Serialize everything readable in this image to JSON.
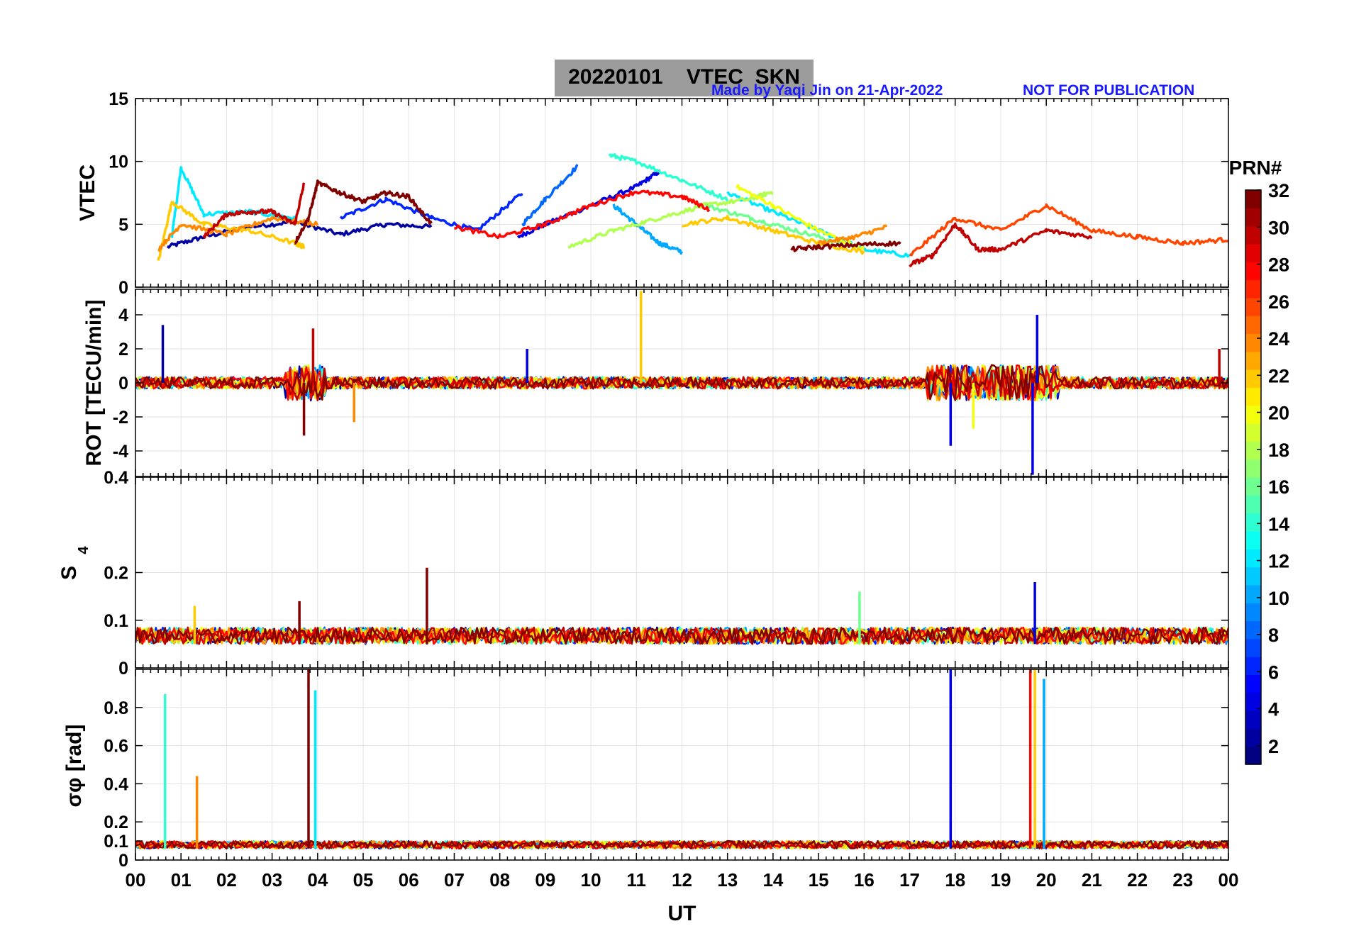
{
  "header": {
    "title": "20220101    VTEC  SKN",
    "credit": "Made by Yaqi Jin on 21-Apr-2022",
    "notice": "NOT FOR PUBLICATION"
  },
  "colors": {
    "title_box": "#9c9c9c",
    "credit_text": "#1a1aff",
    "colormap": "jet"
  },
  "chart_data": [
    {
      "type": "line",
      "panel": "vtec",
      "xlabel": "",
      "ylabel": "VTEC",
      "xlim": [
        0,
        24
      ],
      "ylim": [
        0,
        15
      ],
      "yticks": [
        0,
        5,
        10,
        15
      ],
      "grid": true,
      "description_of_series": "one line per PRN 1-32 colored by PRN",
      "series": [
        {
          "prn": 2,
          "x": [
            0.7,
            1.5,
            2.5,
            3.5,
            4.5,
            5.5,
            6.5
          ],
          "y": [
            3.2,
            4.0,
            4.8,
            5.2,
            4.2,
            5.0,
            4.8
          ]
        },
        {
          "prn": 4,
          "x": [
            8.4,
            9.0,
            10.0,
            11.0,
            11.5
          ],
          "y": [
            4.0,
            5.0,
            6.5,
            8.0,
            9.2
          ]
        },
        {
          "prn": 6,
          "x": [
            4.5,
            5.5,
            6.5,
            7.5,
            8.5
          ],
          "y": [
            5.5,
            7.0,
            5.5,
            4.5,
            7.5
          ]
        },
        {
          "prn": 8,
          "x": [
            8.5,
            9.0,
            9.7
          ],
          "y": [
            5.0,
            7.0,
            9.6
          ]
        },
        {
          "prn": 10,
          "x": [
            10.5,
            11.0,
            11.5,
            12.0
          ],
          "y": [
            6.5,
            5.0,
            3.5,
            2.8
          ]
        },
        {
          "prn": 12,
          "x": [
            0.8,
            1.0,
            1.5,
            2.5,
            3.5
          ],
          "y": [
            4.0,
            9.5,
            5.8,
            6.0,
            5.5
          ]
        },
        {
          "prn": 12,
          "x": [
            13.0,
            14.0,
            15.0,
            16.0,
            17.0
          ],
          "y": [
            7.5,
            6.0,
            4.5,
            3.0,
            2.5
          ]
        },
        {
          "prn": 14,
          "x": [
            10.4,
            11.0,
            12.0,
            13.0
          ],
          "y": [
            10.5,
            10.0,
            8.5,
            7.0
          ]
        },
        {
          "prn": 16,
          "x": [
            12.5,
            13.5,
            14.5,
            15.5
          ],
          "y": [
            6.5,
            5.5,
            4.5,
            3.5
          ]
        },
        {
          "prn": 18,
          "x": [
            9.5,
            10.5,
            11.5,
            12.5,
            13.5,
            14.0
          ],
          "y": [
            3.2,
            4.5,
            5.5,
            6.5,
            7.0,
            7.6
          ]
        },
        {
          "prn": 20,
          "x": [
            13.2,
            14.0,
            15.0,
            16.0
          ],
          "y": [
            8.0,
            6.5,
            4.5,
            3.0
          ]
        },
        {
          "prn": 22,
          "x": [
            0.5,
            0.8,
            1.5,
            2.5,
            3.5,
            3.7
          ],
          "y": [
            2.0,
            6.8,
            5.0,
            4.5,
            3.5,
            3.2
          ]
        },
        {
          "prn": 22,
          "x": [
            12.0,
            13.0,
            14.0,
            15.0,
            16.0
          ],
          "y": [
            5.0,
            5.5,
            4.5,
            3.5,
            2.8
          ]
        },
        {
          "prn": 24,
          "x": [
            0.5,
            1.0,
            2.0,
            3.0,
            4.0
          ],
          "y": [
            3.0,
            5.0,
            4.2,
            5.5,
            5.0
          ]
        },
        {
          "prn": 24,
          "x": [
            15.0,
            15.8,
            16.5
          ],
          "y": [
            3.5,
            4.0,
            4.8
          ]
        },
        {
          "prn": 26,
          "x": [
            17.0,
            18.0,
            19.0,
            20.0,
            21.0,
            22.0,
            23.0,
            24.0
          ],
          "y": [
            2.5,
            5.5,
            4.5,
            6.5,
            4.5,
            4.0,
            3.5,
            3.8
          ]
        },
        {
          "prn": 28,
          "x": [
            7.0,
            8.0,
            9.0,
            10.0,
            11.0,
            12.0,
            12.6
          ],
          "y": [
            4.8,
            4.0,
            5.0,
            6.5,
            7.6,
            7.2,
            6.2
          ]
        },
        {
          "prn": 30,
          "x": [
            1.5,
            2.0,
            2.5,
            3.0,
            3.5,
            3.7
          ],
          "y": [
            4.0,
            5.8,
            6.0,
            6.0,
            5.0,
            8.2
          ]
        },
        {
          "prn": 30,
          "x": [
            17.0,
            17.5,
            18.0,
            18.5,
            19.0,
            20.0,
            21.0
          ],
          "y": [
            1.8,
            2.5,
            5.0,
            3.0,
            3.0,
            4.5,
            4.0
          ]
        },
        {
          "prn": 32,
          "x": [
            3.5,
            3.8,
            4.0,
            4.5,
            5.0,
            5.5,
            6.0,
            6.5
          ],
          "y": [
            3.5,
            5.5,
            8.3,
            7.5,
            6.8,
            7.5,
            7.2,
            5.0
          ]
        },
        {
          "prn": 32,
          "x": [
            14.4,
            15.0,
            16.0,
            16.8
          ],
          "y": [
            3.0,
            3.2,
            3.4,
            3.5
          ]
        }
      ]
    },
    {
      "type": "line",
      "panel": "rot",
      "ylabel": "ROT [TECU/min]",
      "xlim": [
        0,
        24
      ],
      "ylim": [
        -5.5,
        5.5
      ],
      "yticks": [
        -4,
        -2,
        0,
        2,
        4
      ],
      "grid": true,
      "spikes": [
        {
          "x": 0.6,
          "y": 3.4,
          "prn": 2
        },
        {
          "x": 3.7,
          "y": -3.1,
          "prn": 32
        },
        {
          "x": 3.9,
          "y": 3.2,
          "prn": 30
        },
        {
          "x": 4.8,
          "y": -2.3,
          "prn": 24
        },
        {
          "x": 8.6,
          "y": 2.0,
          "prn": 4
        },
        {
          "x": 11.1,
          "y": 5.4,
          "prn": 22
        },
        {
          "x": 17.9,
          "y": -3.7,
          "prn": 4
        },
        {
          "x": 18.4,
          "y": -2.7,
          "prn": 20
        },
        {
          "x": 19.7,
          "y": -5.4,
          "prn": 4
        },
        {
          "x": 19.8,
          "y": 4.0,
          "prn": 4
        },
        {
          "x": 23.8,
          "y": 2.0,
          "prn": 30
        }
      ]
    },
    {
      "type": "line",
      "panel": "s4",
      "ylabel": "S4",
      "xlim": [
        0,
        24
      ],
      "ylim": [
        0,
        0.4
      ],
      "yticks": [
        0,
        0.1,
        0.2,
        0.4
      ],
      "grid": true,
      "baseline": 0.05,
      "spikes": [
        {
          "x": 3.6,
          "y": 0.14,
          "prn": 32
        },
        {
          "x": 6.4,
          "y": 0.21,
          "prn": 32
        },
        {
          "x": 19.75,
          "y": 0.18,
          "prn": 4
        },
        {
          "x": 15.9,
          "y": 0.16,
          "prn": 16
        },
        {
          "x": 1.3,
          "y": 0.13,
          "prn": 22
        }
      ]
    },
    {
      "type": "line",
      "panel": "sigma_phi",
      "ylabel": "σφ [rad]",
      "xlim": [
        0,
        24
      ],
      "ylim": [
        0,
        1.0
      ],
      "yticks": [
        0,
        0.1,
        0.2,
        0.4,
        0.6,
        0.8
      ],
      "xticks": [
        "00",
        "01",
        "02",
        "03",
        "04",
        "05",
        "06",
        "07",
        "08",
        "09",
        "10",
        "11",
        "12",
        "13",
        "14",
        "15",
        "16",
        "17",
        "18",
        "19",
        "20",
        "21",
        "22",
        "23",
        "00"
      ],
      "x_axis_label": "UT",
      "grid": true,
      "baseline": 0.06,
      "spikes": [
        {
          "x": 0.65,
          "y": 0.87,
          "prn": 14
        },
        {
          "x": 1.35,
          "y": 0.44,
          "prn": 24
        },
        {
          "x": 3.8,
          "y": 1.0,
          "prn": 32
        },
        {
          "x": 3.95,
          "y": 0.89,
          "prn": 12
        },
        {
          "x": 17.9,
          "y": 1.0,
          "prn": 4
        },
        {
          "x": 19.65,
          "y": 1.0,
          "prn": 28
        },
        {
          "x": 19.75,
          "y": 1.0,
          "prn": 22
        },
        {
          "x": 19.95,
          "y": 0.95,
          "prn": 10
        }
      ]
    }
  ],
  "colorbar": {
    "label": "PRN#",
    "range": [
      1,
      32
    ],
    "ticks": [
      2,
      4,
      6,
      8,
      10,
      12,
      14,
      16,
      18,
      20,
      22,
      24,
      26,
      28,
      30,
      32
    ]
  }
}
